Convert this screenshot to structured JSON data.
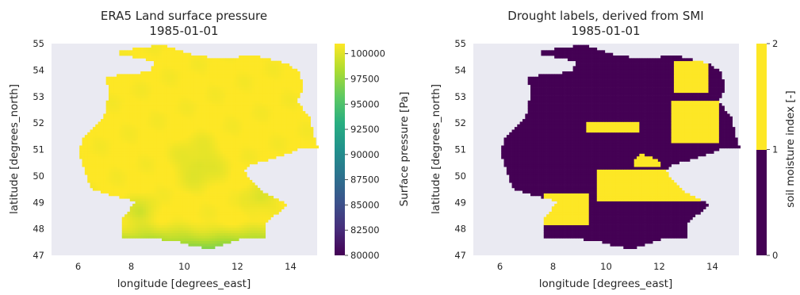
{
  "chart_data": [
    {
      "type": "heatmap",
      "title": "ERA5 Land surface pressure",
      "subtitle": "1985-01-01",
      "xlabel": "longitude [degrees_east]",
      "ylabel": "latitude [degrees_north]",
      "xlim": [
        5,
        15
      ],
      "ylim": [
        47,
        55
      ],
      "xticks": [
        6,
        8,
        10,
        12,
        14
      ],
      "yticks": [
        47,
        48,
        49,
        50,
        51,
        52,
        53,
        54,
        55
      ],
      "grid": false,
      "colormap": "viridis",
      "colorbar": {
        "label": "Surface pressure [Pa]",
        "range": [
          80000,
          101000
        ],
        "ticks": [
          "80000",
          "82500",
          "85000",
          "87500",
          "90000",
          "92500",
          "95000",
          "97500",
          "100000"
        ]
      }
    },
    {
      "type": "heatmap",
      "title": "Drought labels, derived from SMI",
      "subtitle": "1985-01-01",
      "xlabel": "longitude [degrees_east]",
      "ylabel": "latitude [degrees_north]",
      "xlim": [
        5,
        15
      ],
      "ylim": [
        47,
        55
      ],
      "xticks": [
        6,
        8,
        10,
        12,
        14
      ],
      "yticks": [
        47,
        48,
        49,
        50,
        51,
        52,
        53,
        54,
        55
      ],
      "grid": false,
      "colormap": "viridis (2 classes)",
      "colors": {
        "class_0_1": "#440154",
        "class_1_2": "#fde725"
      },
      "colorbar": {
        "label": "soil moisture index [-]",
        "range": [
          0,
          2
        ],
        "ticks": [
          "0",
          "1",
          "2"
        ]
      }
    }
  ]
}
